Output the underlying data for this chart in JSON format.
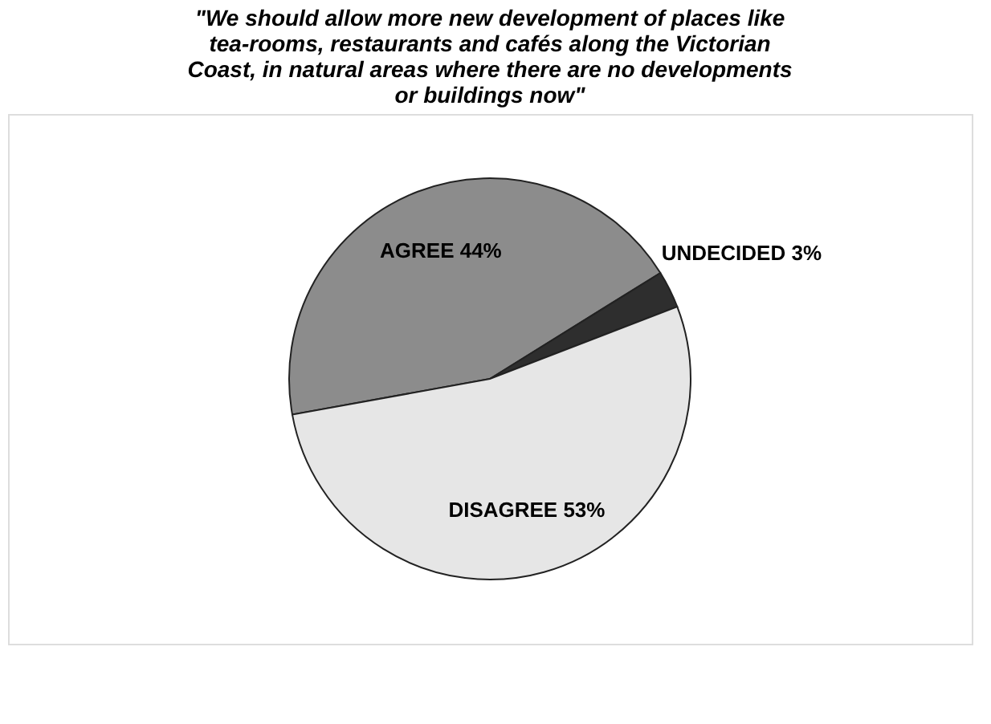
{
  "chart_data": {
    "type": "pie",
    "title": "\"We should allow more new development of places like tea-rooms, restaurants and cafés along the Victorian Coast, in natural areas where there are no developments or buildings now\"",
    "categories": [
      "AGREE",
      "UNDECIDED",
      "DISAGREE"
    ],
    "values": [
      44,
      3,
      53
    ],
    "colors": [
      "#8c8c8c",
      "#2e2e2e",
      "#e6e6e6"
    ],
    "value_labels": [
      "44%",
      "3%",
      "53%"
    ],
    "legend": false
  }
}
